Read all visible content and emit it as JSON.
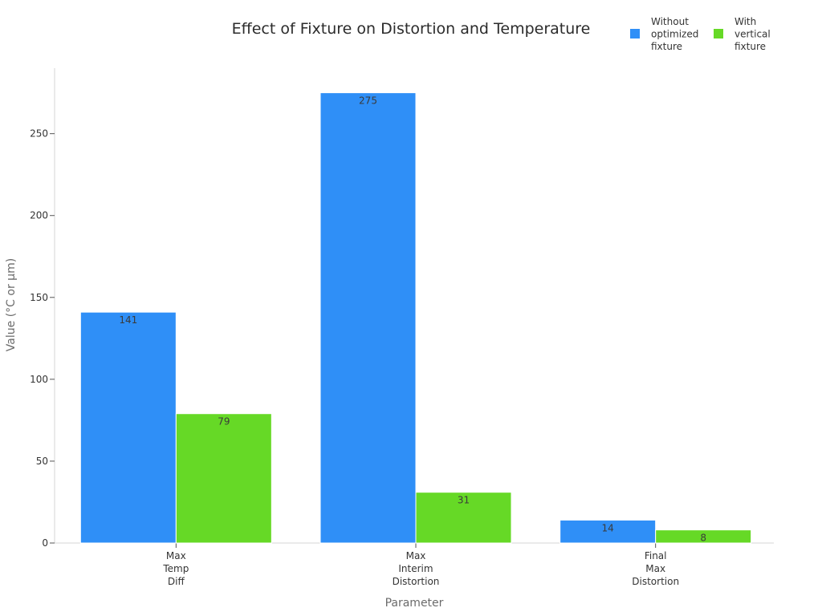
{
  "chart_data": {
    "type": "bar",
    "title": "Effect of Fixture on Distortion and Temperature",
    "xlabel": "Parameter",
    "ylabel": "Value (°C or µm)",
    "categories": [
      [
        "Max",
        "Temp",
        "Diff"
      ],
      [
        "Max",
        "Interim",
        "Distortion"
      ],
      [
        "Final",
        "Max",
        "Distortion"
      ]
    ],
    "series": [
      {
        "name": [
          "Without",
          "optimized",
          "fixture"
        ],
        "color": "#2f8ff7",
        "values": [
          141,
          275,
          14
        ]
      },
      {
        "name": [
          "With",
          "vertical",
          "fixture"
        ],
        "color": "#66d926",
        "values": [
          79,
          31,
          8
        ]
      }
    ],
    "ylim": [
      0,
      290
    ],
    "yticks": [
      0,
      50,
      100,
      150,
      200,
      250
    ],
    "grid": false,
    "legend_position": "top-right"
  }
}
